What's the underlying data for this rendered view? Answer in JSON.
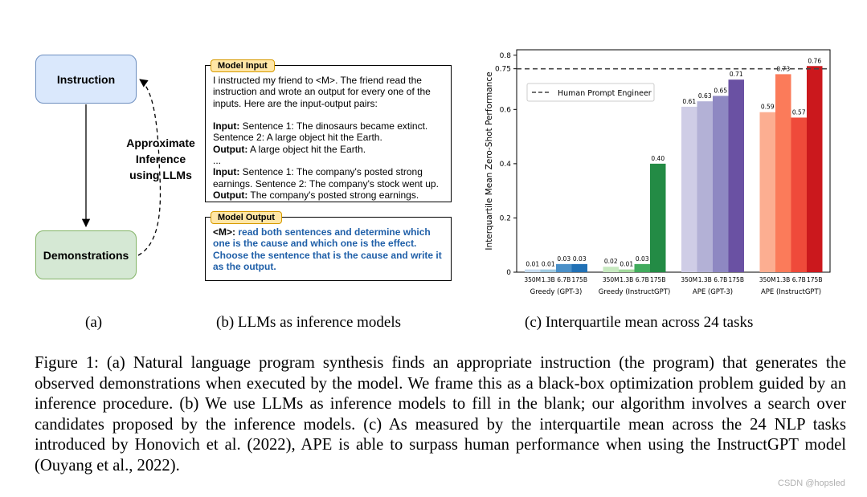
{
  "panel_a": {
    "instruction_label": "Instruction",
    "demonstrations_label": "Demonstrations",
    "approx_lines": [
      "Approximate",
      "Inference",
      "using LLMs"
    ]
  },
  "panel_b": {
    "input_tag": "Model Input",
    "input_intro": [
      "I instructed my friend to <M>. The friend read the",
      "instruction and wrote an output for every one of the",
      "inputs. Here are the input-output pairs:"
    ],
    "ex1_input_label": "Input:",
    "ex1_input_text": " Sentence 1: The dinosaurs became extinct.",
    "ex1_input_line2": "Sentence 2: A large object hit the Earth.",
    "ex1_output_label": "Output:",
    "ex1_output_text": " A large object hit the Earth.",
    "ellipsis": "...",
    "ex2_input_label": "Input:",
    "ex2_input_text": " Sentence 1: The company's posted strong",
    "ex2_input_line2": "earnings. Sentence 2: The company's stock went up.",
    "ex2_output_label": "Output:",
    "ex2_output_text": " The company's posted strong earnings.",
    "output_tag": "Model Output",
    "output_prefix": "<M>:",
    "output_text": " read both sentences and determine which one is the cause and which one is the effect. Choose the sentence that is the cause and write it as the output."
  },
  "captions": {
    "a": "(a)",
    "b": "(b) LLMs as inference models",
    "c": "(c) Interquartile mean across 24 tasks"
  },
  "figure_caption": "Figure 1: (a) Natural language program synthesis finds an appropriate instruction (the program) that generates the observed demonstrations when executed by the model. We frame this as a black-box optimization problem guided by an inference procedure. (b) We use LLMs as inference models to fill in the blank; our algorithm involves a search over candidates proposed by the inference models. (c) As measured by the interquartile mean across the 24 NLP tasks introduced by Honovich et al. (2022), APE is able to surpass human performance when using the InstructGPT model (Ouyang et al., 2022).",
  "watermark": "CSDN @hopsled",
  "chart_data": {
    "type": "bar",
    "ylabel": "Interquartile Mean Zero-Shot Performance",
    "ylim": [
      0,
      0.82
    ],
    "yticks": [
      0,
      0.2,
      0.4,
      0.6,
      0.8
    ],
    "extra_ytick": 0.75,
    "grid": false,
    "legend": {
      "label": "Human Prompt Engineer",
      "placement": "top-left"
    },
    "reference_line": {
      "value": 0.75,
      "style": "dashed",
      "color": "#444444"
    },
    "model_sizes": [
      "350M",
      "1.3B",
      "6.7B",
      "175B"
    ],
    "groups": [
      {
        "name": "Greedy (GPT-3)",
        "values": [
          0.01,
          0.01,
          0.03,
          0.03
        ],
        "labels": [
          "0.01",
          "0.01",
          "0.03",
          "0.03"
        ],
        "colors": [
          "#c6dbef",
          "#9ecae1",
          "#4a90c8",
          "#2171b5"
        ]
      },
      {
        "name": "Greedy (InstructGPT)",
        "values": [
          0.02,
          0.01,
          0.03,
          0.4
        ],
        "labels": [
          "0.02",
          "0.01",
          "0.03",
          "0.40"
        ],
        "colors": [
          "#c7e9c0",
          "#a1d99b",
          "#41ab5d",
          "#238b45"
        ]
      },
      {
        "name": "APE (GPT-3)",
        "values": [
          0.61,
          0.63,
          0.65,
          0.71
        ],
        "labels": [
          "0.61",
          "0.63",
          "0.65",
          "0.71"
        ],
        "colors": [
          "#cfcde6",
          "#b3b1d6",
          "#8e88c2",
          "#6a51a3"
        ]
      },
      {
        "name": "APE (InstructGPT)",
        "values": [
          0.59,
          0.73,
          0.57,
          0.76
        ],
        "labels": [
          "0.59",
          "0.73",
          "0.57",
          "0.76"
        ],
        "colors": [
          "#fcae91",
          "#fb7b5a",
          "#ef4a3a",
          "#cb181d"
        ]
      }
    ]
  }
}
